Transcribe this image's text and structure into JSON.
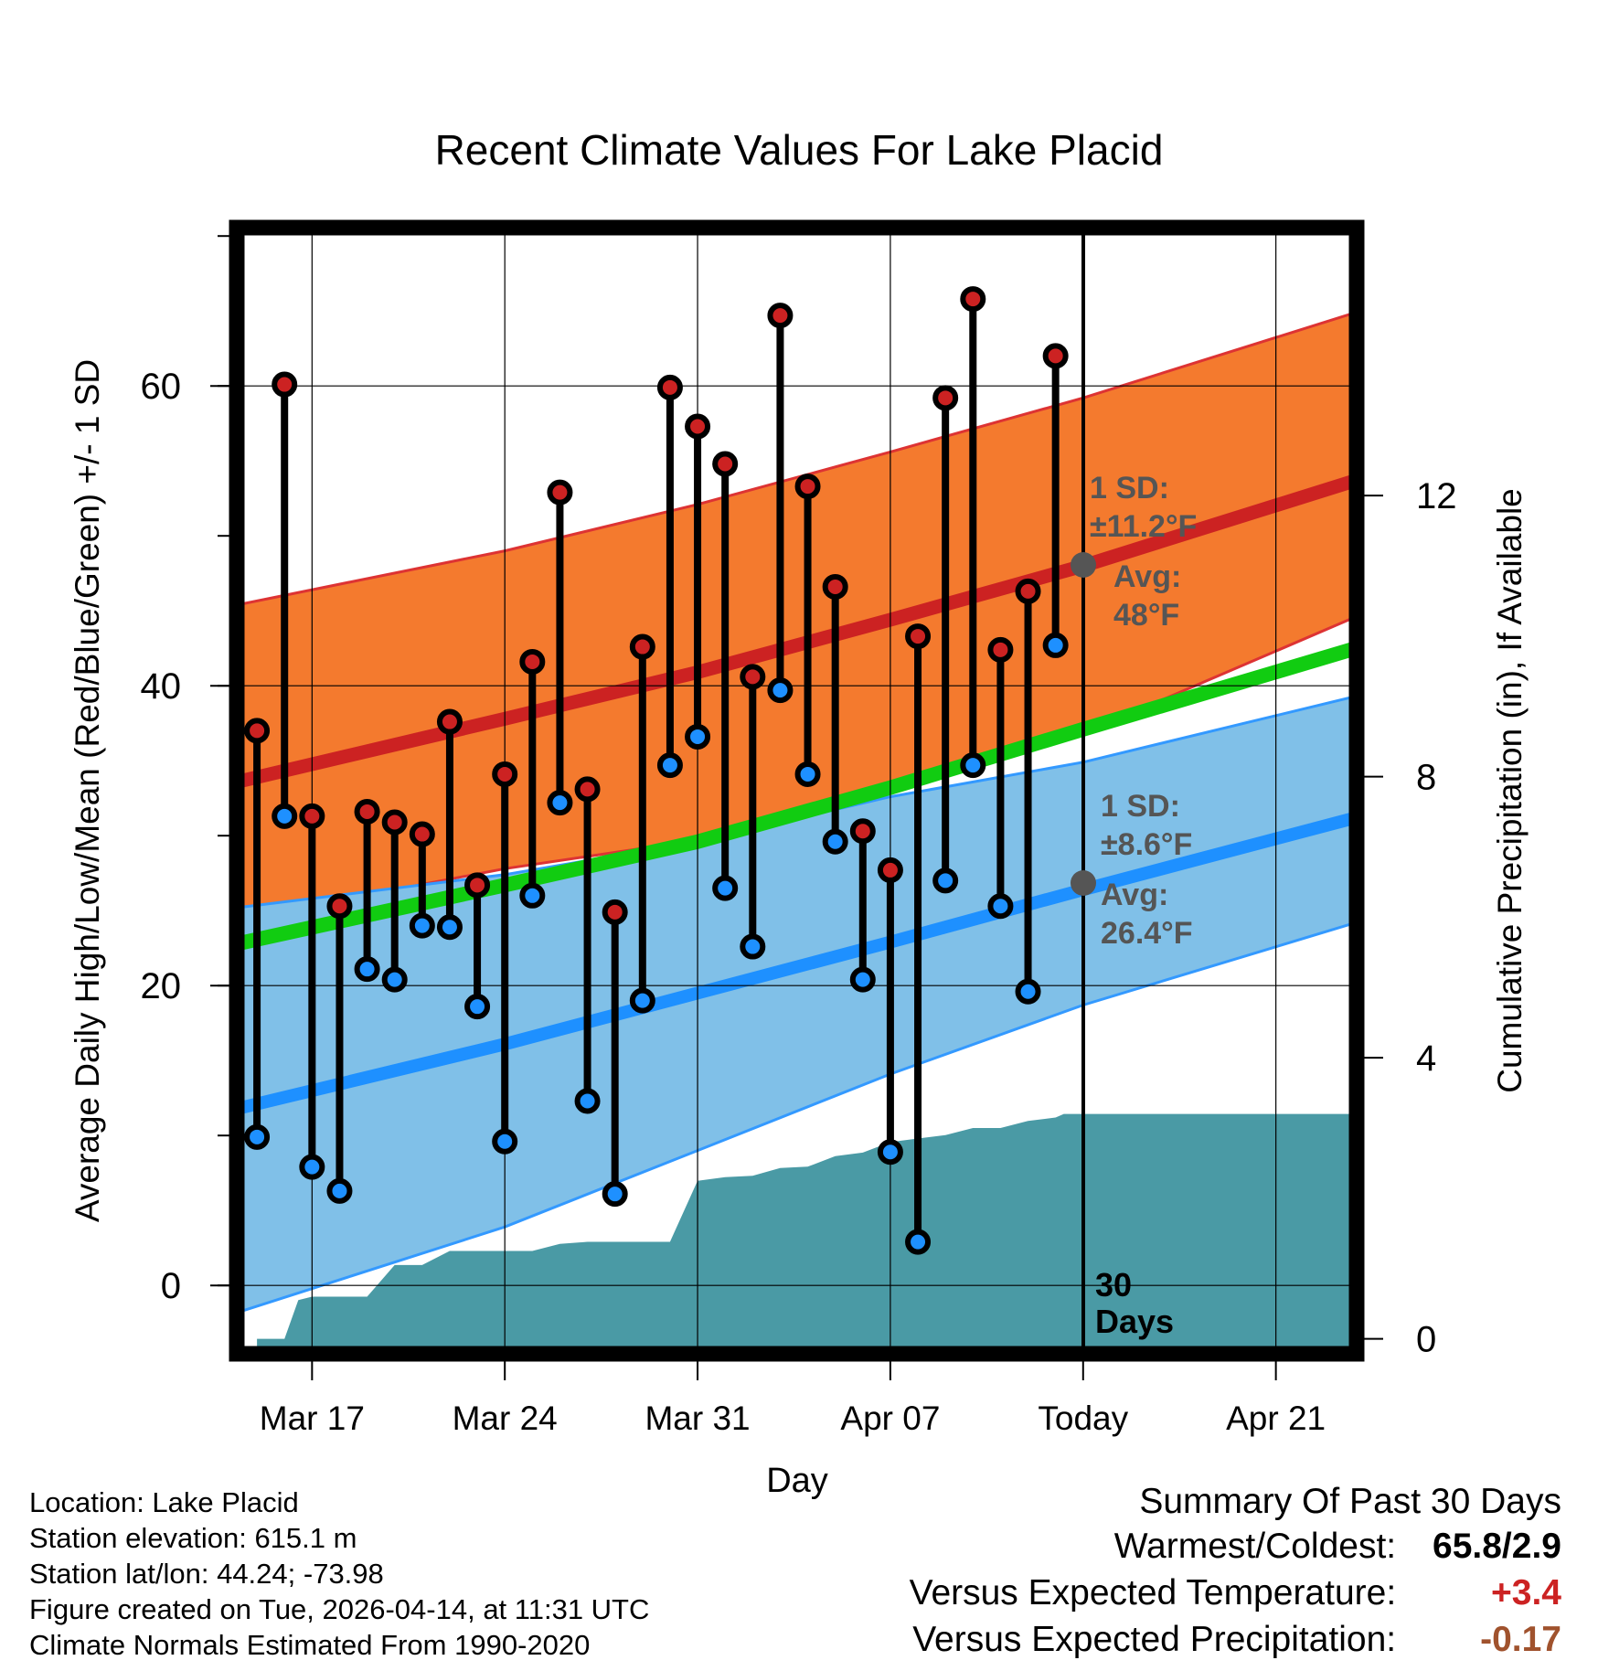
{
  "chart_data": {
    "type": "line",
    "title": "Recent Climate Values For Lake Placid",
    "xlabel": "Day",
    "ylabel": "Average Daily High/Low/Mean (Red/Blue/Green) +/- 1 SD",
    "y2label": "Cumulative Precipitation (in), If Available",
    "x_tick_labels": [
      "Mar 17",
      "Mar 24",
      "Mar 31",
      "Apr 07",
      "Today",
      "Apr 21"
    ],
    "x_tick_days": [
      3,
      10,
      17,
      24,
      31,
      38
    ],
    "x_range_days": [
      0.3,
      40.9
    ],
    "ylim": [
      -4.5,
      70.5
    ],
    "y_ticks": [
      0,
      20,
      40,
      60
    ],
    "y2lim": [
      -0.2,
      15.8
    ],
    "y2_ticks": [
      0,
      4,
      8,
      12
    ],
    "today_day": 31,
    "today_label": "30 Days",
    "series": [
      {
        "name": "Normal High",
        "color": "#cc2222",
        "x": [
          0.3,
          10,
          17,
          24,
          31,
          40.9
        ],
        "values": [
          33.6,
          37.8,
          40.9,
          44.4,
          48.0,
          53.7
        ]
      },
      {
        "name": "Normal High +1 SD",
        "color": "#dd3333",
        "x": [
          0.3,
          10,
          17,
          24,
          31,
          40.9
        ],
        "values": [
          45.4,
          49.0,
          52.1,
          55.6,
          59.2,
          64.9
        ]
      },
      {
        "name": "Normal High -1 SD",
        "color": "#dd3333",
        "x": [
          0.3,
          10,
          17,
          24,
          31,
          40.9
        ],
        "values": [
          24.4,
          27.8,
          29.7,
          33.2,
          36.8,
          44.6
        ]
      },
      {
        "name": "Normal Mean",
        "color": "#11cc11",
        "x": [
          0.3,
          10,
          17,
          24,
          31,
          40.9
        ],
        "values": [
          22.8,
          26.7,
          29.6,
          33.2,
          37.1,
          42.5
        ]
      },
      {
        "name": "Normal Low",
        "color": "#1e90ff",
        "x": [
          0.3,
          10,
          17,
          24,
          31,
          40.9
        ],
        "values": [
          11.8,
          16.1,
          19.5,
          22.9,
          26.4,
          31.2
        ]
      },
      {
        "name": "Normal Low +1 SD",
        "color": "#3399ff",
        "x": [
          0.3,
          10,
          17,
          24,
          31,
          40.9
        ],
        "values": [
          25.2,
          27.4,
          29.6,
          32.6,
          34.9,
          39.3
        ]
      },
      {
        "name": "Normal Low -1 SD",
        "color": "#3399ff",
        "x": [
          0.3,
          10,
          17,
          24,
          31,
          40.9
        ],
        "values": [
          -1.8,
          3.9,
          9.0,
          14.1,
          18.7,
          24.2
        ]
      }
    ],
    "observed": {
      "days": [
        1,
        2,
        3,
        4,
        5,
        6,
        7,
        8,
        9,
        10,
        11,
        12,
        13,
        14,
        15,
        16,
        17,
        18,
        19,
        20,
        21,
        22,
        23,
        24,
        25,
        26,
        27,
        28,
        29,
        30
      ],
      "highs": [
        37.0,
        60.1,
        31.3,
        25.3,
        31.6,
        30.9,
        30.1,
        37.6,
        26.7,
        34.1,
        41.6,
        52.9,
        33.1,
        24.9,
        42.6,
        59.9,
        57.3,
        54.8,
        40.6,
        64.7,
        53.3,
        46.6,
        30.3,
        27.7,
        43.3,
        59.2,
        65.8,
        42.4,
        46.3,
        62.0
      ],
      "lows": [
        9.9,
        31.3,
        7.9,
        6.3,
        21.1,
        20.4,
        24.0,
        23.9,
        18.6,
        9.6,
        26.0,
        32.2,
        12.3,
        6.1,
        19.0,
        34.7,
        36.6,
        26.5,
        22.6,
        39.7,
        34.1,
        29.6,
        20.4,
        8.9,
        2.9,
        27.0,
        34.7,
        25.3,
        19.6,
        42.7
      ]
    },
    "precip_cumulative": {
      "days": [
        1,
        2,
        2.5,
        3,
        4,
        5,
        6,
        7,
        8,
        9,
        10,
        11,
        12,
        13,
        14,
        15,
        16,
        17,
        18,
        19,
        20,
        21,
        22,
        23,
        24,
        25,
        26,
        27,
        28,
        29,
        30,
        30.3,
        40.9
      ],
      "values": [
        0.0,
        0.0,
        0.55,
        0.6,
        0.6,
        0.6,
        1.05,
        1.05,
        1.25,
        1.25,
        1.25,
        1.25,
        1.35,
        1.38,
        1.38,
        1.38,
        1.38,
        2.25,
        2.3,
        2.32,
        2.43,
        2.45,
        2.6,
        2.65,
        2.8,
        2.85,
        2.9,
        3.0,
        3.0,
        3.1,
        3.15,
        3.2,
        3.2
      ]
    },
    "annotations": {
      "high_sd": "1 SD:",
      "high_sd_val": "±11.2°F",
      "high_avg": "Avg:",
      "high_avg_val": "48°F",
      "low_sd": "1 SD:",
      "low_sd_val": "±8.6°F",
      "low_avg": "Avg:",
      "low_avg_val": "26.4°F"
    }
  },
  "info": {
    "location": "Location: Lake Placid",
    "elevation": "Station elevation: 615.1 m",
    "latlon": "Station lat/lon: 44.24; -73.98",
    "created": "Figure created on Tue, 2026-04-14, at 11:31 UTC",
    "normals": "Climate Normals Estimated From 1990-2020"
  },
  "summary": {
    "title": "Summary Of Past 30 Days",
    "warm_cold_label": "Warmest/Coldest:",
    "warm_cold_value": "65.8/2.9",
    "temp_label": "Versus Expected Temperature:",
    "temp_value": "+3.4",
    "temp_color": "#cc2222",
    "precip_label": "Versus Expected Precipitation:",
    "precip_value": "-0.17",
    "precip_color": "#a0522d"
  },
  "colors": {
    "high_band": "#f47a2e",
    "high_line": "#cc2222",
    "low_band": "#80c0e8",
    "low_line": "#1e90ff",
    "mean_line": "#11cc11",
    "precip": "#4a9aa5",
    "high_dot": "#cc2222",
    "low_dot": "#1e90ff"
  }
}
